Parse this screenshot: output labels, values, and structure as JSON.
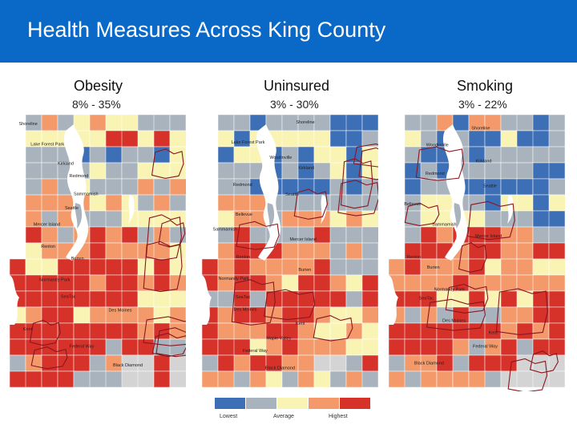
{
  "slide": {
    "title": "Health Measures Across King County",
    "banner_color": "#0a69c7"
  },
  "maps": [
    {
      "title": "Obesity",
      "range": "8% - 35%",
      "place_labels": [
        "Shoreline",
        "Lake Forest Park",
        "Kirkland",
        "Redmond",
        "Sammamish",
        "Seattle",
        "Mercer Island",
        "Renton",
        "Burien",
        "Normandy Park",
        "SeaTac",
        "Des Moines",
        "Kent",
        "Federal Way",
        "Black Diamond"
      ]
    },
    {
      "title": "Uninsured",
      "range": "3% - 30%",
      "place_labels": [
        "Shoreline",
        "Lake Forest Park",
        "Woodinville",
        "Kirkland",
        "Redmond",
        "Seattle",
        "Bellevue",
        "Sammamish",
        "Mercer Island",
        "Renton",
        "Burien",
        "Normandy Park",
        "SeaTac",
        "Des Moines",
        "Kent",
        "Maple Valley",
        "Federal Way",
        "Black Diamond"
      ]
    },
    {
      "title": "Smoking",
      "range": "3% - 22%",
      "place_labels": [
        "Shoreline",
        "Woodinville",
        "Kirkland",
        "Redmond",
        "Seattle",
        "Bellevue",
        "Sammamish",
        "Mercer Island",
        "Renton",
        "Burien",
        "Normandy Park",
        "SeaTac",
        "Des Moines",
        "Kent",
        "Federal Way",
        "Black Diamond"
      ]
    }
  ],
  "legend": {
    "classes": [
      {
        "color": "#3d6fb6",
        "label": "Lowest"
      },
      {
        "color": "#a8b3be",
        "label": ""
      },
      {
        "color": "#f9f4b4",
        "label": "Average"
      },
      {
        "color": "#f49a6a",
        "label": ""
      },
      {
        "color": "#d6322a",
        "label": "Highest"
      }
    ]
  },
  "palette": {
    "low": "#3d6fb6",
    "below": "#a8b3be",
    "average": "#f9f4b4",
    "above": "#f49a6a",
    "high": "#d6322a",
    "water": "#ffffff",
    "noData": "#d4d4d4",
    "border": "#8a1620"
  }
}
